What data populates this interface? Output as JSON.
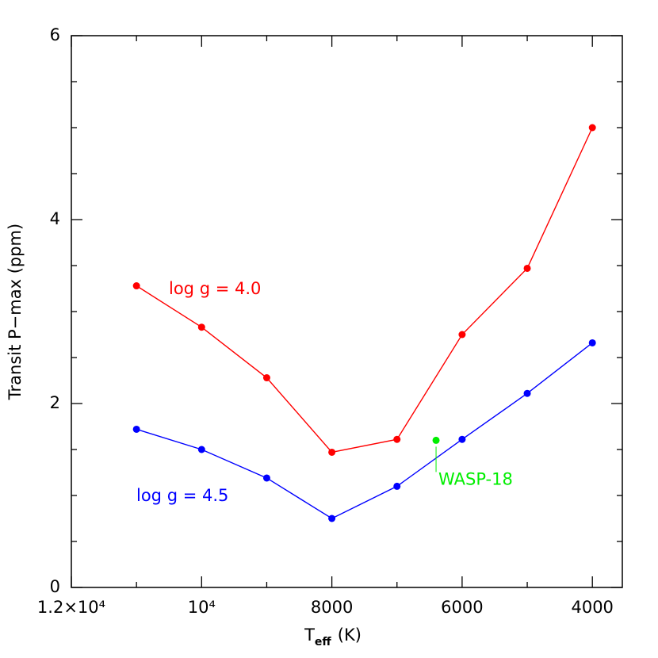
{
  "chart_data": {
    "type": "line",
    "xlabel": [
      "T",
      "eff",
      "(K)"
    ],
    "ylabel": "Transit P−max (ppm)",
    "xlim": [
      12000,
      3540
    ],
    "ylim": [
      0,
      6
    ],
    "xticks": [
      {
        "value": 12000,
        "label": "1.2×10⁴"
      },
      {
        "value": 10000,
        "label": "10⁴"
      },
      8000,
      6000,
      4000
    ],
    "xminorticks": [
      11000,
      9000,
      7000,
      5000
    ],
    "yticks": [
      0,
      2,
      4,
      6
    ],
    "yminorticks": [
      0.5,
      1,
      1.5,
      2.5,
      3,
      3.5,
      4.5,
      5,
      5.5
    ],
    "x": [
      11000,
      10000,
      9000,
      8000,
      7000,
      6000,
      5000,
      4000
    ],
    "series": [
      {
        "name": "log g = 4.0",
        "color": "#ff0000",
        "values": [
          3.28,
          2.83,
          2.28,
          1.47,
          1.61,
          2.75,
          3.47,
          5.0
        ]
      },
      {
        "name": "log g = 4.5",
        "color": "#0000ff",
        "values": [
          1.72,
          1.5,
          1.19,
          0.75,
          1.1,
          1.61,
          2.11,
          2.66
        ]
      }
    ],
    "points": [
      {
        "name": "WASP-18",
        "color": "#00ee00",
        "x": 6400,
        "y": 1.6
      }
    ]
  }
}
